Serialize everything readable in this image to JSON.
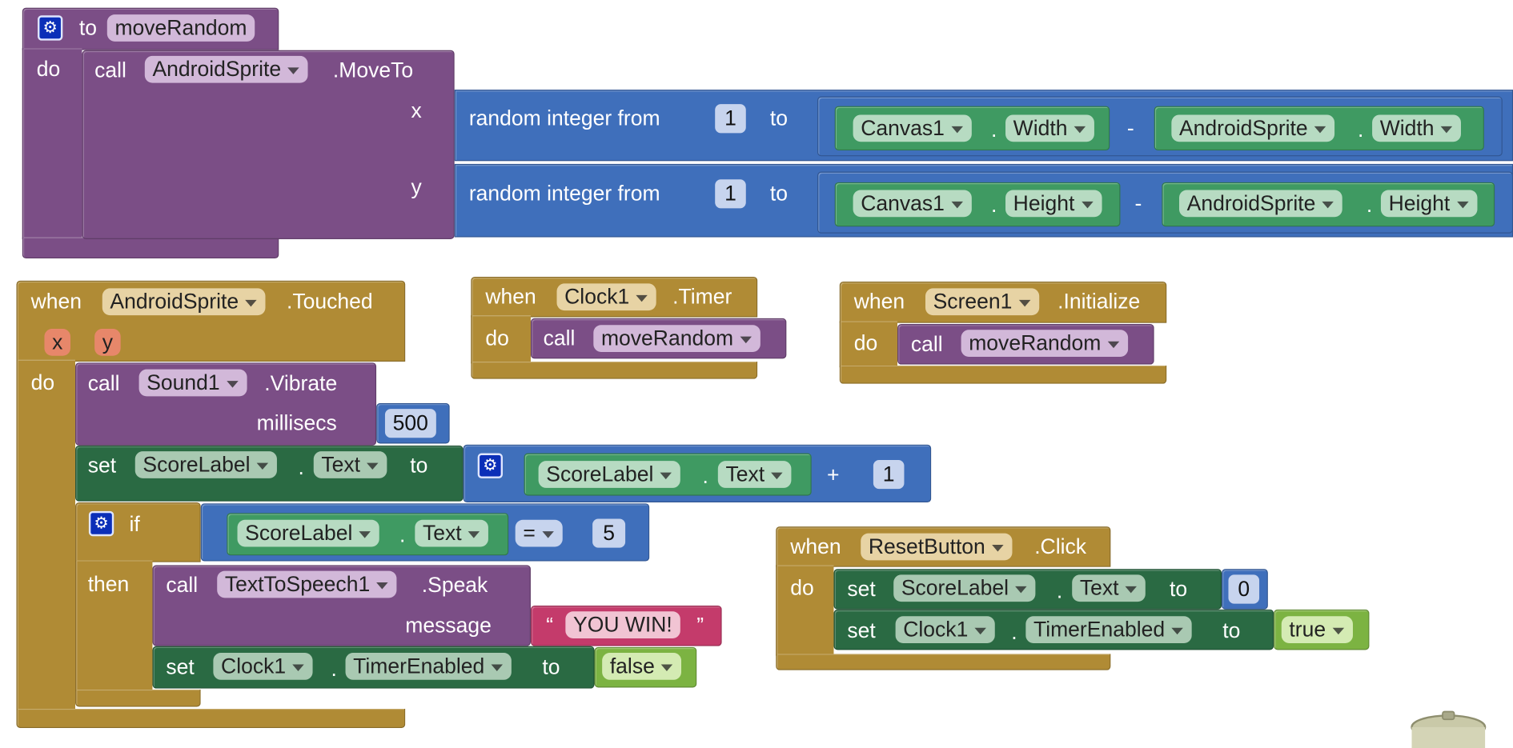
{
  "colors": {
    "procedure": "#7b4e86",
    "event": "#b08b35",
    "math": "#3f6fbb",
    "setter": "#2a6a43",
    "getter": "#3f9a62",
    "logic": "#7cb342",
    "text": "#c43b6b"
  },
  "icons": {
    "mutator": "gear-icon",
    "trash": "trash-can-icon"
  },
  "move_random": {
    "kw_to": "to",
    "name": "moveRandom",
    "kw_do": "do",
    "kw_call": "call",
    "component": "AndroidSprite",
    "method": ".MoveTo",
    "arg_x": "x",
    "arg_y": "y",
    "rand_label": "random integer from",
    "rand_to": "to",
    "from_value": "1",
    "x_left_comp": "Canvas1",
    "x_left_prop": "Width",
    "minus": "-",
    "x_right_comp": "AndroidSprite",
    "x_right_prop": "Width",
    "y_left_comp": "Canvas1",
    "y_left_prop": "Height",
    "y_right_comp": "AndroidSprite",
    "y_right_prop": "Height",
    "dot": "."
  },
  "touched": {
    "kw_when": "when",
    "component": "AndroidSprite",
    "event": ".Touched",
    "param_x": "x",
    "param_y": "y",
    "kw_do": "do",
    "kw_call": "call",
    "sound_comp": "Sound1",
    "sound_method": ".Vibrate",
    "arg_millisecs": "millisecs",
    "millisecs_value": "500",
    "kw_set": "set",
    "score_comp": "ScoreLabel",
    "score_prop": "Text",
    "kw_to": "to",
    "plus": "+",
    "add_value": "1",
    "kw_if": "if",
    "eq": "=",
    "eq_value": "5",
    "kw_then": "then",
    "tts_comp": "TextToSpeech1",
    "tts_method": ".Speak",
    "arg_message": "message",
    "message_text": "YOU WIN!",
    "quote_open": "“",
    "quote_close": "”",
    "clock_comp": "Clock1",
    "clock_prop": "TimerEnabled",
    "false_value": "false"
  },
  "timer": {
    "kw_when": "when",
    "component": "Clock1",
    "event": ".Timer",
    "kw_do": "do",
    "kw_call": "call",
    "proc": "moveRandom"
  },
  "init": {
    "kw_when": "when",
    "component": "Screen1",
    "event": ".Initialize",
    "kw_do": "do",
    "kw_call": "call",
    "proc": "moveRandom"
  },
  "reset": {
    "kw_when": "when",
    "component": "ResetButton",
    "event": ".Click",
    "kw_do": "do",
    "kw_set": "set",
    "score_comp": "ScoreLabel",
    "score_prop": "Text",
    "kw_to": "to",
    "zero_value": "0",
    "clock_comp": "Clock1",
    "clock_prop": "TimerEnabled",
    "true_value": "true"
  }
}
